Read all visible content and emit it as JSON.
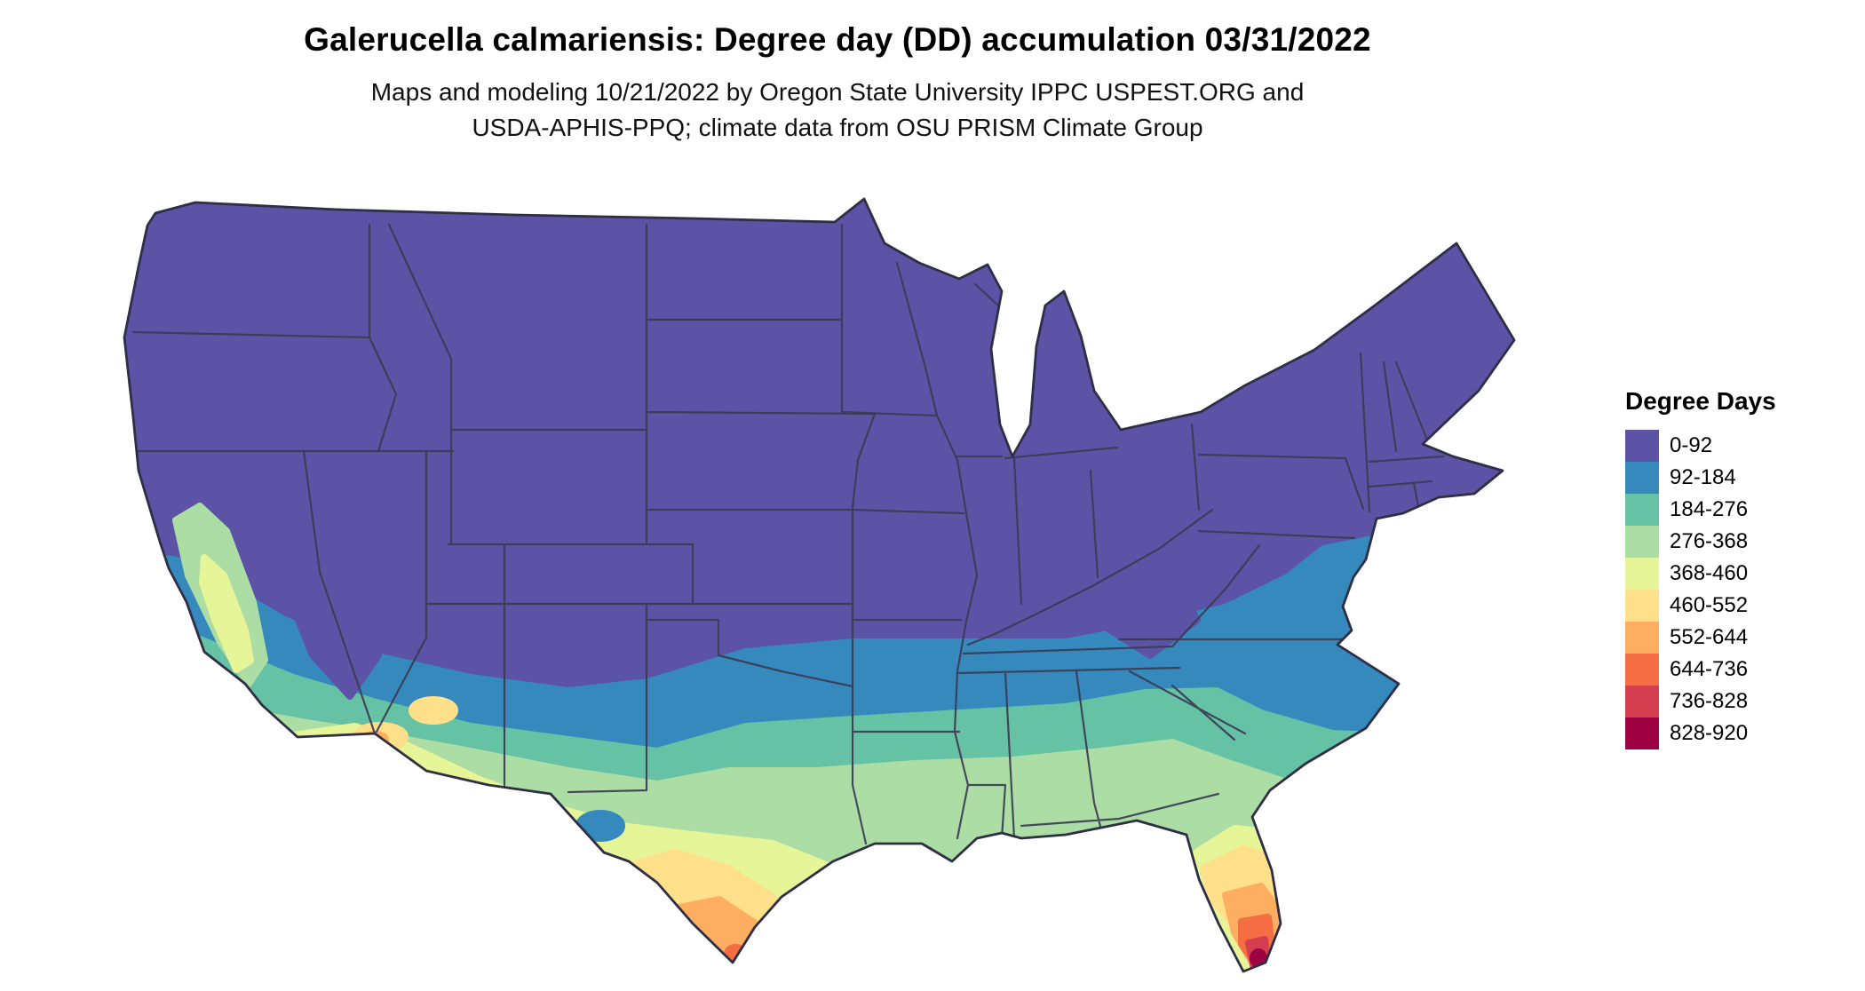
{
  "title": "Galerucella calmariensis: Degree day (DD) accumulation 03/31/2022",
  "subtitle": {
    "line1": "Maps and modeling 10/21/2022 by Oregon State University IPPC USPEST.ORG and",
    "line2": "USDA-APHIS-PPQ; climate data from OSU PRISM Climate Group"
  },
  "legend": {
    "title": "Degree Days",
    "items": [
      {
        "label": "0-92",
        "color": "#5D53A6"
      },
      {
        "label": "92-184",
        "color": "#3589BD"
      },
      {
        "label": "184-276",
        "color": "#66C2A5"
      },
      {
        "label": "276-368",
        "color": "#ABDDA4"
      },
      {
        "label": "368-460",
        "color": "#E6F598"
      },
      {
        "label": "460-552",
        "color": "#FEE08B"
      },
      {
        "label": "552-644",
        "color": "#FDAE61"
      },
      {
        "label": "644-736",
        "color": "#F46D43"
      },
      {
        "label": "736-828",
        "color": "#D53E4F"
      },
      {
        "label": "828-920",
        "color": "#9E0142"
      }
    ]
  },
  "chart_data": {
    "type": "heatmap",
    "title": "Galerucella calmariensis: Degree day (DD) accumulation 03/31/2022",
    "legend_title": "Degree Days",
    "unit": "accumulated degree days (DD) as of 03/31/2022",
    "region": "continental United States",
    "legend_position": "right",
    "bins": [
      {
        "range": [
          0,
          92
        ],
        "color": "#5D53A6",
        "extent": "most of the northern and central US, Rockies, Great Basin, Midwest, Northeast"
      },
      {
        "range": [
          92,
          184
        ],
        "color": "#3589BD",
        "extent": "band across the upper South, southern plateau of AZ/NM, Atlantic coastal plain to Virginia"
      },
      {
        "range": [
          184,
          276
        ],
        "color": "#66C2A5",
        "extent": "Deep South band, central Texas, southern Arizona, California coast and valley margins"
      },
      {
        "range": [
          276,
          368
        ],
        "color": "#ABDDA4",
        "extent": "Gulf coastal plain, south-central Texas, California Central Valley, north Florida"
      },
      {
        "range": [
          368,
          460
        ],
        "color": "#E6F598",
        "extent": "south Texas, central Florida, low deserts of southwest Arizona"
      },
      {
        "range": [
          460,
          552
        ],
        "color": "#FEE08B",
        "extent": "deep south Texas and central-south Florida, Yuma area"
      },
      {
        "range": [
          552,
          644
        ],
        "color": "#FDAE61",
        "extent": "lower Rio Grande valley tip of Texas, south Florida"
      },
      {
        "range": [
          644,
          736
        ],
        "color": "#F46D43",
        "extent": "southern tip of Florida"
      },
      {
        "range": [
          736,
          828
        ],
        "color": "#D53E4F",
        "extent": "extreme southern Florida"
      },
      {
        "range": [
          828,
          920
        ],
        "color": "#9E0142",
        "extent": "tiny area at the very tip of south Florida"
      }
    ]
  }
}
